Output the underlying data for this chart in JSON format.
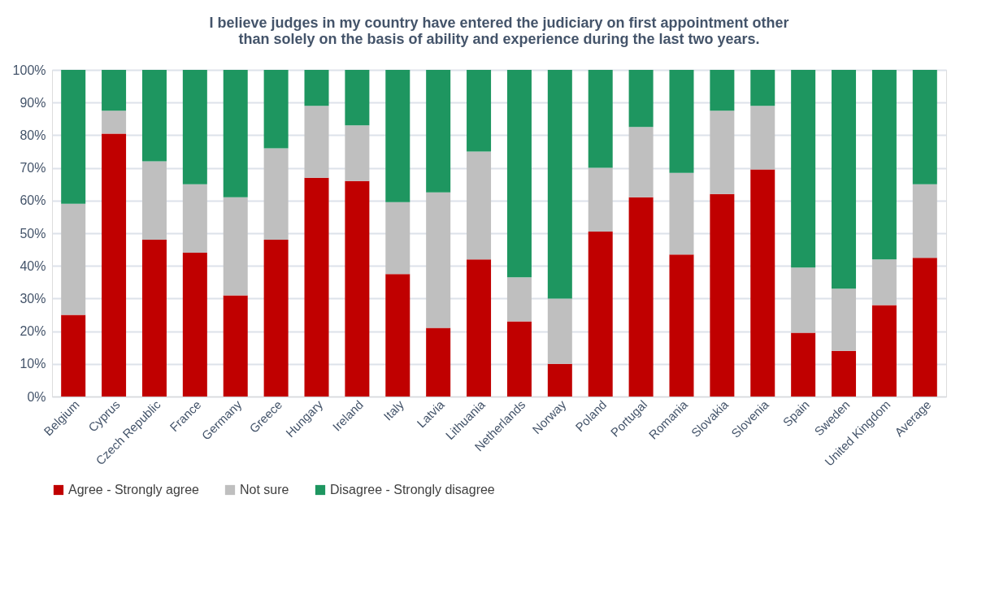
{
  "chart_data": {
    "type": "bar",
    "stacked": true,
    "title": [
      "I believe judges in my country have entered the judiciary on first appointment other",
      "than solely on the basis of ability and experience during the last two years."
    ],
    "categories": [
      "Belgium",
      "Cyprus",
      "Czech Republic",
      "France",
      "Germany",
      "Greece",
      "Hungary",
      "Ireland",
      "Italy",
      "Latvia",
      "Lithuania",
      "Netherlands",
      "Norway",
      "Poland",
      "Portugal",
      "Romania",
      "Slovakia",
      "Slovenia",
      "Spain",
      "Sweden",
      "United Kingdom",
      "Average"
    ],
    "series": [
      {
        "name": "Agree - Strongly agree",
        "color": "#c00000",
        "values": [
          25,
          80.5,
          48,
          44,
          31,
          48,
          67,
          66,
          37.5,
          21,
          42,
          23,
          10,
          50.5,
          61,
          43.5,
          62,
          69.5,
          19.5,
          14,
          28,
          42.5
        ]
      },
      {
        "name": "Not sure",
        "color": "#bfbfbf",
        "values": [
          34,
          7,
          24,
          21,
          30,
          28,
          22,
          17,
          22,
          41.5,
          33,
          13.5,
          20,
          19.5,
          21.5,
          25,
          25.5,
          19.5,
          20,
          19,
          14,
          22.5
        ]
      },
      {
        "name": "Disagree - Strongly disagree",
        "color": "#1e9660",
        "values": [
          41,
          12.5,
          28,
          35,
          39,
          24,
          11,
          17,
          40.5,
          37.5,
          25,
          63.5,
          70,
          30,
          17.5,
          31.5,
          12.5,
          11,
          60.5,
          67,
          58,
          35
        ]
      }
    ],
    "ylim": [
      0,
      100
    ],
    "yticks": [
      {
        "value": 0,
        "label": "0%"
      },
      {
        "value": 10,
        "label": "10%"
      },
      {
        "value": 20,
        "label": "20%"
      },
      {
        "value": 30,
        "label": "30%"
      },
      {
        "value": 40,
        "label": "40%"
      },
      {
        "value": 50,
        "label": "50%"
      },
      {
        "value": 60,
        "label": "60%"
      },
      {
        "value": 70,
        "label": "70%"
      },
      {
        "value": 80,
        "label": "80%"
      },
      {
        "value": 90,
        "label": "90%"
      },
      {
        "value": 100,
        "label": "100%"
      }
    ],
    "grid": "y",
    "legend": "bottom"
  }
}
